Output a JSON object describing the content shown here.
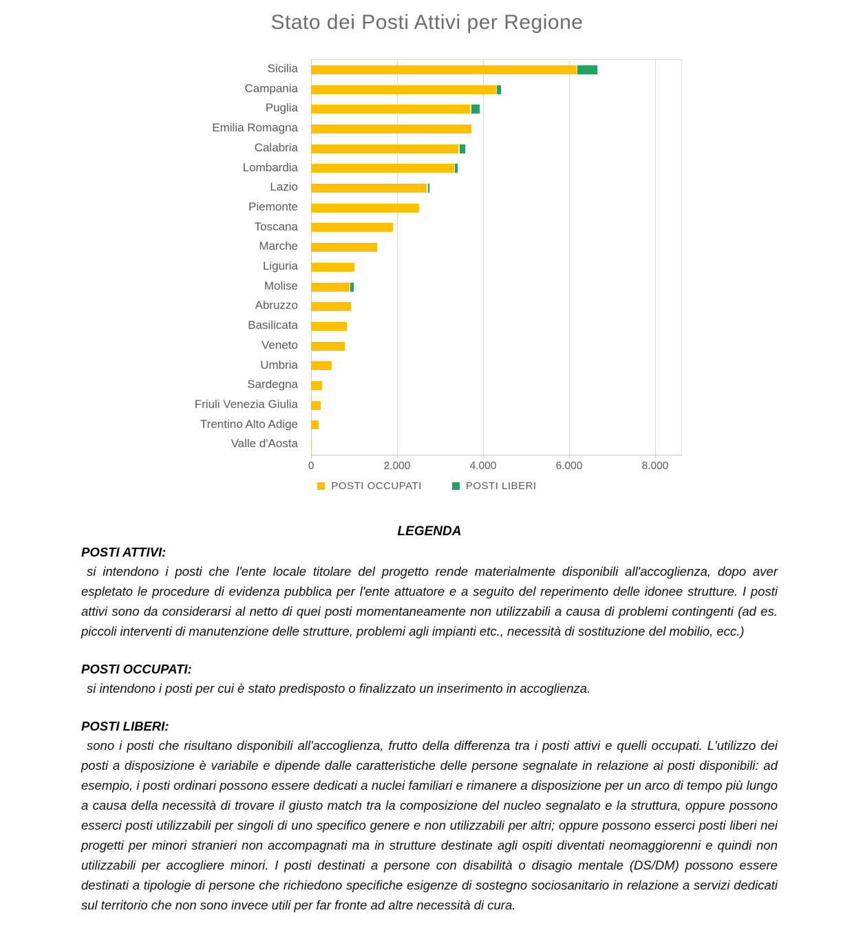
{
  "chart": {
    "title": "Stato dei Posti Attivi per Regione",
    "legend": [
      {
        "label": "POSTI OCCUPATI",
        "color": "#FFC000"
      },
      {
        "label": "POSTI LIBERI",
        "color": "#21A366"
      }
    ],
    "x_tick_labels": [
      "0",
      "2.000",
      "4.000",
      "6.000",
      "8.000"
    ]
  },
  "chart_data": {
    "type": "bar",
    "orientation": "horizontal",
    "title": "Stato dei Posti Attivi per Regione",
    "categories": [
      "Sicilia",
      "Campania",
      "Puglia",
      "Emilia Romagna",
      "Calabria",
      "Lombardia",
      "Lazio",
      "Piemonte",
      "Toscana",
      "Marche",
      "Liguria",
      "Molise",
      "Abruzzo",
      "Basilicata",
      "Veneto",
      "Umbria",
      "Sardegna",
      "Friuli Venezia Giulia",
      "Trentino Alto Adige",
      "Valle d'Aosta"
    ],
    "series": [
      {
        "name": "POSTI OCCUPATI",
        "color": "#FFC000",
        "values": [
          6170,
          4300,
          3700,
          3735,
          3425,
          3325,
          2695,
          2515,
          1900,
          1530,
          1000,
          895,
          920,
          835,
          785,
          475,
          250,
          220,
          175,
          15
        ]
      },
      {
        "name": "POSTI LIBERI",
        "color": "#21A366",
        "values": [
          460,
          85,
          190,
          0,
          135,
          55,
          25,
          0,
          0,
          0,
          0,
          75,
          0,
          0,
          0,
          0,
          0,
          0,
          0,
          0
        ]
      }
    ],
    "xlim": [
      0,
      8600
    ],
    "x_tick_values": [
      0,
      2000,
      4000,
      6000,
      8000
    ],
    "grid": true,
    "legend_position": "bottom"
  },
  "legenda": {
    "title": "LEGENDA",
    "sections": [
      {
        "heading": "POSTI ATTIVI:",
        "body": "si intendono i posti che l'ente locale titolare del progetto rende materialmente disponibili all'accoglienza, dopo aver espletato le procedure di evidenza pubblica per l'ente attuatore e a seguito del reperimento delle idonee strutture. I posti attivi sono da considerarsi al netto di quei posti momentaneamente non utilizzabili a causa di problemi contingenti (ad es. piccoli interventi di manutenzione delle strutture, problemi agli impianti etc., necessità di sostituzione del mobilio, ecc.)"
      },
      {
        "heading": "POSTI OCCUPATI:",
        "body": "si intendono i posti per cui è stato predisposto o finalizzato un inserimento in accoglienza."
      },
      {
        "heading": "POSTI LIBERI:",
        "body": "sono i posti che risultano disponibili all'accoglienza, frutto della differenza tra i posti attivi e quelli occupati. L'utilizzo dei posti a disposizione è variabile e dipende dalle caratteristiche delle persone segnalate in relazione ai posti disponibili: ad esempio, i posti ordinari possono essere dedicati a nuclei familiari e rimanere a disposizione per un arco di tempo più lungo a causa della necessità di trovare il giusto match tra la composizione del nucleo segnalato e la struttura, oppure possono esserci posti utilizzabili per singoli di uno specifico genere e non utilizzabili per altri; oppure possono esserci posti liberi nei progetti per minori stranieri non accompagnati ma in strutture destinate agli ospiti diventati neomaggiorenni e quindi non utilizzabili per accogliere minori. I posti destinati a persone con disabilità o disagio mentale (DS/DM) possono essere destinati a tipologie di persone che richiedono specifiche esigenze di sostegno sociosanitario in relazione a servizi dedicati sul territorio che non sono invece utili per far fronte ad altre necessità di cura."
      }
    ]
  }
}
